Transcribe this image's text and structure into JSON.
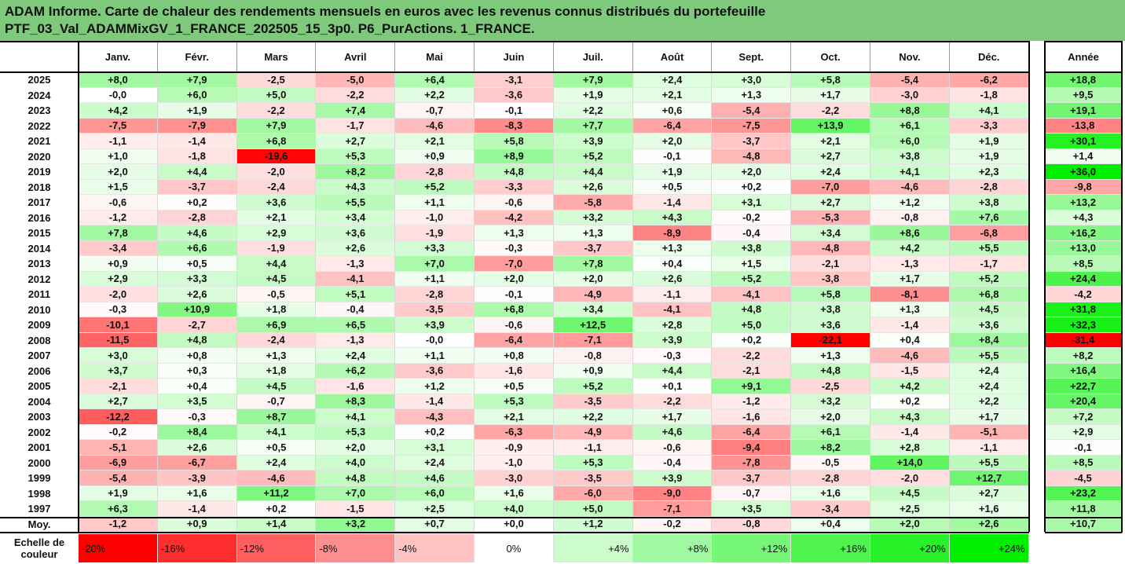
{
  "title_line1": "ADAM Informe. Carte de chaleur des rendements mensuels en euros avec les revenus connus distribués du portefeuille",
  "title_line2": "PTF_03_Val_ADAMMixGV_1_FRANCE_202505_15_3p0. P6_PurActions. 1_FRANCE.",
  "chart_data": {
    "type": "heatmap",
    "columns": [
      "Janv.",
      "Févr.",
      "Mars",
      "Avril",
      "Mai",
      "Juin",
      "Juil.",
      "Août",
      "Sept.",
      "Oct.",
      "Nov.",
      "Déc."
    ],
    "year_column": "Année",
    "rows": [
      {
        "year": "2025",
        "values": [
          "+8,0",
          "+7,9",
          "-2,5",
          "-5,0",
          "+6,4",
          "-3,1",
          "+7,9",
          "+2,4",
          "+3,0",
          "+5,8",
          "-5,4",
          "-6,2"
        ],
        "annual": "+18,8"
      },
      {
        "year": "2024",
        "values": [
          "-0,0",
          "+6,0",
          "+5,0",
          "-2,2",
          "+2,2",
          "-3,6",
          "+1,9",
          "+2,1",
          "+1,3",
          "+1,7",
          "-3,0",
          "-1,8"
        ],
        "annual": "+9,5"
      },
      {
        "year": "2023",
        "values": [
          "+4,2",
          "+1,9",
          "-2,2",
          "+7,4",
          "-0,7",
          "-0,1",
          "+2,2",
          "+0,6",
          "-5,4",
          "-2,2",
          "+8,8",
          "+4,1"
        ],
        "annual": "+19,1"
      },
      {
        "year": "2022",
        "values": [
          "-7,5",
          "-7,9",
          "+7,9",
          "-1,7",
          "-4,6",
          "-8,3",
          "+7,7",
          "-6,4",
          "-7,5",
          "+13,9",
          "+6,1",
          "-3,3"
        ],
        "annual": "-13,8"
      },
      {
        "year": "2021",
        "values": [
          "-1,1",
          "-1,4",
          "+6,8",
          "+2,7",
          "+2,1",
          "+5,8",
          "+3,9",
          "+2,0",
          "-3,7",
          "+2,1",
          "+6,0",
          "+1,9"
        ],
        "annual": "+30,1"
      },
      {
        "year": "2020",
        "values": [
          "+1,0",
          "-1,8",
          "-19,6",
          "+5,3",
          "+0,9",
          "+8,9",
          "+5,2",
          "-0,1",
          "-4,8",
          "+2,7",
          "+3,8",
          "+1,9"
        ],
        "annual": "+1,4"
      },
      {
        "year": "2019",
        "values": [
          "+2,0",
          "+4,4",
          "-2,0",
          "+8,2",
          "-2,8",
          "+4,8",
          "+4,4",
          "+1,9",
          "+2,0",
          "+2,4",
          "+4,1",
          "+2,3"
        ],
        "annual": "+36,0"
      },
      {
        "year": "2018",
        "values": [
          "+1,5",
          "-3,7",
          "-2,4",
          "+4,3",
          "+5,2",
          "-3,3",
          "+2,6",
          "+0,5",
          "+0,2",
          "-7,0",
          "-4,6",
          "-2,8"
        ],
        "annual": "-9,8"
      },
      {
        "year": "2017",
        "values": [
          "-0,6",
          "+0,2",
          "+3,6",
          "+5,5",
          "+1,1",
          "-0,6",
          "-5,8",
          "-1,4",
          "+3,1",
          "+2,7",
          "+1,2",
          "+3,8"
        ],
        "annual": "+13,2"
      },
      {
        "year": "2016",
        "values": [
          "-1,2",
          "-2,8",
          "+2,1",
          "+3,4",
          "-1,0",
          "-4,2",
          "+3,2",
          "+4,3",
          "-0,2",
          "-5,3",
          "-0,8",
          "+7,6"
        ],
        "annual": "+4,3"
      },
      {
        "year": "2015",
        "values": [
          "+7,8",
          "+4,6",
          "+2,9",
          "+3,6",
          "-1,9",
          "+1,3",
          "+1,3",
          "-8,9",
          "-0,4",
          "+3,4",
          "+8,6",
          "-6,8"
        ],
        "annual": "+16,2"
      },
      {
        "year": "2014",
        "values": [
          "-3,4",
          "+6,6",
          "-1,9",
          "+2,6",
          "+3,3",
          "-0,3",
          "-3,7",
          "+1,3",
          "+3,8",
          "-4,8",
          "+4,2",
          "+5,5"
        ],
        "annual": "+13,0"
      },
      {
        "year": "2013",
        "values": [
          "+0,9",
          "+0,5",
          "+4,4",
          "-1,3",
          "+7,0",
          "-7,0",
          "+7,8",
          "+0,4",
          "+1,5",
          "-2,1",
          "-1,3",
          "-1,7"
        ],
        "annual": "+8,5"
      },
      {
        "year": "2012",
        "values": [
          "+2,9",
          "+3,3",
          "+4,5",
          "-4,1",
          "+1,1",
          "+2,0",
          "+2,0",
          "+2,6",
          "+5,2",
          "-3,8",
          "+1,7",
          "+5,2"
        ],
        "annual": "+24,4"
      },
      {
        "year": "2011",
        "values": [
          "-2,0",
          "+2,6",
          "-0,5",
          "+5,1",
          "-2,8",
          "-0,1",
          "-4,9",
          "-1,1",
          "-4,1",
          "+5,8",
          "-8,1",
          "+6,8"
        ],
        "annual": "-4,2"
      },
      {
        "year": "2010",
        "values": [
          "-0,3",
          "+10,9",
          "+1,8",
          "-0,4",
          "-3,5",
          "+6,8",
          "+3,4",
          "-4,1",
          "+4,8",
          "+3,8",
          "+1,3",
          "+4,5"
        ],
        "annual": "+31,8"
      },
      {
        "year": "2009",
        "values": [
          "-10,1",
          "-2,7",
          "+6,9",
          "+6,5",
          "+3,9",
          "-0,6",
          "+12,5",
          "+2,8",
          "+5,0",
          "+3,6",
          "-1,4",
          "+3,6"
        ],
        "annual": "+32,3"
      },
      {
        "year": "2008",
        "values": [
          "-11,5",
          "+4,8",
          "-2,4",
          "-1,3",
          "-0,0",
          "-6,4",
          "-7,1",
          "+3,9",
          "+0,2",
          "-22,1",
          "+0,4",
          "+8,4"
        ],
        "annual": "-31,4"
      },
      {
        "year": "2007",
        "values": [
          "+3,0",
          "+0,8",
          "+1,3",
          "+2,4",
          "+1,1",
          "+0,8",
          "-0,8",
          "-0,3",
          "-2,2",
          "+1,3",
          "-4,6",
          "+5,5"
        ],
        "annual": "+8,2"
      },
      {
        "year": "2006",
        "values": [
          "+3,7",
          "+0,3",
          "+1,8",
          "+6,2",
          "-3,6",
          "-1,6",
          "+0,9",
          "+4,4",
          "-2,1",
          "+4,8",
          "-1,5",
          "+2,4"
        ],
        "annual": "+16,4"
      },
      {
        "year": "2005",
        "values": [
          "-2,1",
          "+0,4",
          "+4,5",
          "-1,6",
          "+1,2",
          "+0,5",
          "+5,2",
          "+0,1",
          "+9,1",
          "-2,5",
          "+4,2",
          "+2,4"
        ],
        "annual": "+22,7"
      },
      {
        "year": "2004",
        "values": [
          "+2,7",
          "+3,5",
          "-0,7",
          "+8,3",
          "-1,4",
          "+5,3",
          "-3,5",
          "-2,2",
          "-1,2",
          "+3,2",
          "+0,2",
          "+2,2"
        ],
        "annual": "+20,4"
      },
      {
        "year": "2003",
        "values": [
          "-12,2",
          "-0,3",
          "+8,7",
          "+4,1",
          "-4,3",
          "+2,1",
          "+2,2",
          "+1,7",
          "-1,6",
          "+2,0",
          "+4,3",
          "+1,7"
        ],
        "annual": "+7,2"
      },
      {
        "year": "2002",
        "values": [
          "-0,2",
          "+8,4",
          "+4,1",
          "+5,3",
          "+0,2",
          "-6,3",
          "-4,9",
          "+4,6",
          "-6,4",
          "+6,1",
          "-1,4",
          "-5,1"
        ],
        "annual": "+2,9"
      },
      {
        "year": "2001",
        "values": [
          "-5,1",
          "+2,6",
          "+0,5",
          "+2,0",
          "+3,1",
          "-0,9",
          "-1,1",
          "-0,6",
          "-9,4",
          "+8,2",
          "+2,8",
          "-1,1"
        ],
        "annual": "-0,1"
      },
      {
        "year": "2000",
        "values": [
          "-6,9",
          "-6,7",
          "+2,4",
          "+4,0",
          "+2,4",
          "-1,0",
          "+5,3",
          "-0,4",
          "-7,8",
          "-0,5",
          "+14,0",
          "+5,5"
        ],
        "annual": "+8,5"
      },
      {
        "year": "1999",
        "values": [
          "-5,4",
          "-3,9",
          "-4,6",
          "+4,8",
          "+4,6",
          "-3,0",
          "-3,5",
          "+3,9",
          "-3,7",
          "-2,8",
          "-2,0",
          "+12,7"
        ],
        "annual": "-4,5"
      },
      {
        "year": "1998",
        "values": [
          "+1,9",
          "+1,6",
          "+11,2",
          "+7,0",
          "+6,0",
          "+1,6",
          "-6,0",
          "-9,0",
          "-0,7",
          "+1,6",
          "+4,5",
          "+2,7"
        ],
        "annual": "+23,2"
      },
      {
        "year": "1997",
        "values": [
          "+6,3",
          "-1,4",
          "+0,2",
          "-1,5",
          "+2,5",
          "+4,0",
          "+5,0",
          "-7,1",
          "+3,5",
          "-3,4",
          "+2,5",
          "+1,6"
        ],
        "annual": "+11,8"
      }
    ],
    "average": {
      "label": "Moy.",
      "values": [
        "-1,2",
        "+0,9",
        "+1,4",
        "+3,2",
        "+0,7",
        "+0,0",
        "+1,2",
        "-0,2",
        "-0,8",
        "+0,4",
        "+2,0",
        "+2,6"
      ],
      "annual": "+10,7"
    },
    "legend": {
      "label_line1": "Echelle de",
      "label_line2": "couleur",
      "stops": [
        {
          "label": "-20%",
          "value": -20
        },
        {
          "label": "-16%",
          "value": -16
        },
        {
          "label": "-12%",
          "value": -12
        },
        {
          "label": "-8%",
          "value": -8
        },
        {
          "label": "-4%",
          "value": -4
        },
        {
          "label": "0%",
          "value": 0
        },
        {
          "label": "+4%",
          "value": 4
        },
        {
          "label": "+8%",
          "value": 8
        },
        {
          "label": "+12%",
          "value": 12
        },
        {
          "label": "+16%",
          "value": 16
        },
        {
          "label": "+20%",
          "value": 20
        },
        {
          "label": "+24%",
          "value": 24
        }
      ]
    },
    "color_scale": {
      "min": -20,
      "mid": 0,
      "max": 24,
      "min_color": "#ff0000",
      "mid_color": "#ffffff",
      "max_color": "#00ee00"
    },
    "annual_color_scale": {
      "min": -31.4,
      "mid": 0,
      "max": 36.0
    }
  }
}
